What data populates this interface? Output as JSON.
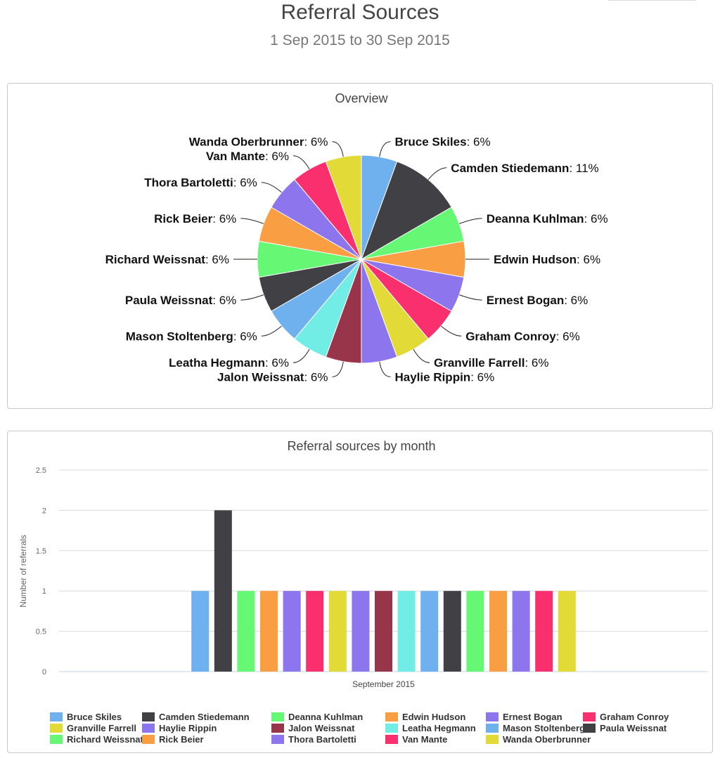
{
  "page": {
    "title": "Referral Sources",
    "date_range": "1 Sep 2015 to 30 Sep 2015"
  },
  "colors": {
    "Bruce Skiles": "#6fb1ef",
    "Camden Stiedemann": "#404045",
    "Deanna Kuhlman": "#66f774",
    "Edwin Hudson": "#fa9e43",
    "Ernest Bogan": "#8d76ed",
    "Graham Conroy": "#f9306d",
    "Granville Farrell": "#e2da37",
    "Haylie Rippin": "#8d76ed",
    "Jalon Weissnat": "#99354b",
    "Leatha Hegmann": "#72ede5",
    "Mason Stoltenberg": "#6fb1ef",
    "Paula Weissnat": "#404045",
    "Richard Weissnat": "#66f774",
    "Rick Beier": "#fa9e43",
    "Thora Bartoletti": "#8d76ed",
    "Van Mante": "#f9306d",
    "Wanda Oberbrunner": "#e2da37"
  },
  "chart_data": [
    {
      "type": "pie",
      "title": "Overview",
      "slices": [
        {
          "name": "Bruce Skiles",
          "value": 1,
          "label": "6%"
        },
        {
          "name": "Camden Stiedemann",
          "value": 2,
          "label": "11%"
        },
        {
          "name": "Deanna Kuhlman",
          "value": 1,
          "label": "6%"
        },
        {
          "name": "Edwin Hudson",
          "value": 1,
          "label": "6%"
        },
        {
          "name": "Ernest Bogan",
          "value": 1,
          "label": "6%"
        },
        {
          "name": "Graham Conroy",
          "value": 1,
          "label": "6%"
        },
        {
          "name": "Granville Farrell",
          "value": 1,
          "label": "6%"
        },
        {
          "name": "Haylie Rippin",
          "value": 1,
          "label": "6%"
        },
        {
          "name": "Jalon Weissnat",
          "value": 1,
          "label": "6%"
        },
        {
          "name": "Leatha Hegmann",
          "value": 1,
          "label": "6%"
        },
        {
          "name": "Mason Stoltenberg",
          "value": 1,
          "label": "6%"
        },
        {
          "name": "Paula Weissnat",
          "value": 1,
          "label": "6%"
        },
        {
          "name": "Richard Weissnat",
          "value": 1,
          "label": "6%"
        },
        {
          "name": "Rick Beier",
          "value": 1,
          "label": "6%"
        },
        {
          "name": "Thora Bartoletti",
          "value": 1,
          "label": "6%"
        },
        {
          "name": "Van Mante",
          "value": 1,
          "label": "6%"
        },
        {
          "name": "Wanda Oberbrunner",
          "value": 1,
          "label": "6%"
        }
      ]
    },
    {
      "type": "bar",
      "title": "Referral sources by month",
      "categories": [
        "September 2015"
      ],
      "ylabel": "Number of referrals",
      "xlabel": "",
      "ylim": [
        0,
        2.5
      ],
      "yticks": [
        "0",
        "0.5",
        "1",
        "1.5",
        "2",
        "2.5"
      ],
      "legend": "bottom",
      "series": [
        {
          "name": "Bruce Skiles",
          "values": [
            1
          ]
        },
        {
          "name": "Camden Stiedemann",
          "values": [
            2
          ]
        },
        {
          "name": "Deanna Kuhlman",
          "values": [
            1
          ]
        },
        {
          "name": "Edwin Hudson",
          "values": [
            1
          ]
        },
        {
          "name": "Ernest Bogan",
          "values": [
            1
          ]
        },
        {
          "name": "Graham Conroy",
          "values": [
            1
          ]
        },
        {
          "name": "Granville Farrell",
          "values": [
            1
          ]
        },
        {
          "name": "Haylie Rippin",
          "values": [
            1
          ]
        },
        {
          "name": "Jalon Weissnat",
          "values": [
            1
          ]
        },
        {
          "name": "Leatha Hegmann",
          "values": [
            1
          ]
        },
        {
          "name": "Mason Stoltenberg",
          "values": [
            1
          ]
        },
        {
          "name": "Paula Weissnat",
          "values": [
            1
          ]
        },
        {
          "name": "Richard Weissnat",
          "values": [
            1
          ]
        },
        {
          "name": "Rick Beier",
          "values": [
            1
          ]
        },
        {
          "name": "Thora Bartoletti",
          "values": [
            1
          ]
        },
        {
          "name": "Van Mante",
          "values": [
            1
          ]
        },
        {
          "name": "Wanda Oberbrunner",
          "values": [
            1
          ]
        }
      ]
    }
  ]
}
